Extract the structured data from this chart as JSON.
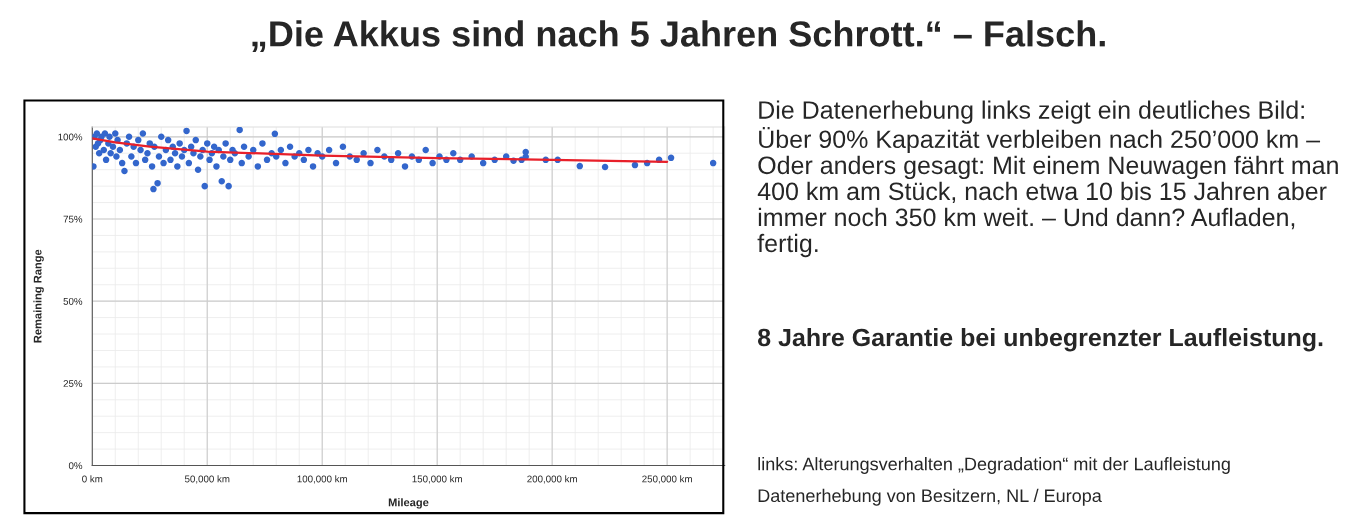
{
  "chart_data": {
    "type": "scatter",
    "title": "„Die Akkus sind nach 5 Jahren Schrott.“ – Falsch.",
    "xlabel": "Mileage",
    "ylabel": "Remaining Range",
    "xlim": [
      0,
      275000
    ],
    "ylim": [
      0,
      103
    ],
    "xticks": [
      {
        "value": 0,
        "label": "0 km"
      },
      {
        "value": 50000,
        "label": "50,000 km"
      },
      {
        "value": 100000,
        "label": "100,000 km"
      },
      {
        "value": 150000,
        "label": "150,000 km"
      },
      {
        "value": 200000,
        "label": "200,000 km"
      },
      {
        "value": 250000,
        "label": "250,000 km"
      }
    ],
    "yticks": [
      {
        "value": 0,
        "label": "0%"
      },
      {
        "value": 25,
        "label": "25%"
      },
      {
        "value": 50,
        "label": "50%"
      },
      {
        "value": 75,
        "label": "75%"
      },
      {
        "value": 100,
        "label": "100%"
      }
    ],
    "grid": true,
    "marker": "circle",
    "legend": false,
    "series": [
      {
        "color": "#3366cc",
        "x": [
          500,
          1000,
          1500,
          2000,
          2500,
          3000,
          3500,
          4000,
          5000,
          5500,
          6000,
          7000,
          7500,
          8000,
          9000,
          10000,
          10500,
          11000,
          12000,
          13000,
          14000,
          15000,
          16000,
          17000,
          18000,
          19000,
          20000,
          21000,
          22000,
          23000,
          24000,
          25000,
          26000,
          26600,
          27000,
          28400,
          29000,
          30000,
          31000,
          32000,
          33000,
          34000,
          35000,
          36000,
          37000,
          38000,
          39000,
          40000,
          41000,
          42000,
          43000,
          44000,
          45000,
          46000,
          47000,
          48000,
          48900,
          50000,
          51000,
          52000,
          53000,
          54000,
          55000,
          56300,
          57000,
          58000,
          59300,
          60000,
          61000,
          62000,
          64100,
          65000,
          66000,
          68000,
          70000,
          72000,
          74000,
          76000,
          78000,
          79400,
          80000,
          82000,
          84000,
          86000,
          88000,
          90000,
          92000,
          94000,
          96000,
          98000,
          100000,
          103000,
          106000,
          109000,
          112000,
          115000,
          118000,
          121000,
          124000,
          127000,
          130000,
          133000,
          136000,
          139000,
          142000,
          145000,
          148000,
          151000,
          154000,
          157000,
          160000,
          165000,
          170000,
          175000,
          180000,
          183200,
          186700,
          188500,
          188500,
          197200,
          202400,
          212000,
          223000,
          236000,
          241300,
          246500,
          251700,
          270000
        ],
        "values": [
          91,
          100,
          97,
          101,
          98,
          95,
          99,
          100,
          96,
          101,
          93,
          98,
          100,
          95,
          97,
          101,
          94,
          99,
          96,
          92,
          89.6,
          98,
          100,
          94,
          97,
          92,
          99,
          96,
          101,
          93,
          95,
          98,
          91,
          84.1,
          97,
          85.9,
          94,
          100,
          92,
          96,
          99,
          93,
          97,
          95,
          91,
          98,
          94,
          96,
          101.8,
          92,
          97,
          95,
          99,
          90,
          94,
          96,
          85,
          98,
          93,
          95,
          97,
          91,
          96,
          86.5,
          94,
          98,
          85,
          93,
          96,
          95,
          102.1,
          92,
          97,
          94,
          96,
          91,
          98,
          93,
          95,
          100.9,
          94,
          96,
          92,
          97,
          94,
          95,
          93,
          96,
          91,
          95,
          94,
          96,
          92,
          97,
          94,
          93,
          95,
          92,
          96,
          94,
          93,
          95,
          91,
          94,
          93,
          96,
          92,
          94,
          93,
          95,
          93,
          94,
          92,
          93,
          94,
          92.7,
          93,
          95.4,
          93.9,
          93,
          93,
          91.1,
          90.8,
          91.4,
          92,
          93,
          93.6,
          92
        ]
      },
      {
        "type": "line",
        "color": "#e8202a",
        "x": [
          0,
          10000,
          25000,
          50000,
          100000,
          150000,
          200000,
          250000
        ],
        "values": [
          99.5,
          98.3,
          97,
          95.5,
          94.3,
          93.5,
          93,
          92.4
        ],
        "marker": "none"
      }
    ],
    "annotations": [
      "Die Datenerhebung links zeigt ein deutliches Bild: Über 90% Kapazität verbleiben nach 250’000 km – Oder anders gesagt: Mit einem Neuwagen fährt man 400 km am Stück, nach etwa 10 bis 15 Jahren aber immer noch 350 km weit. – Und dann? Aufladen, fertig.",
      "8 Jahre Garantie bei unbegrenzter Laufleistung.",
      "links: Alterungsverhalten „Degradation“ mit der Laufleistung",
      "Datenerhebung von Besitzern, NL / Europa"
    ]
  }
}
